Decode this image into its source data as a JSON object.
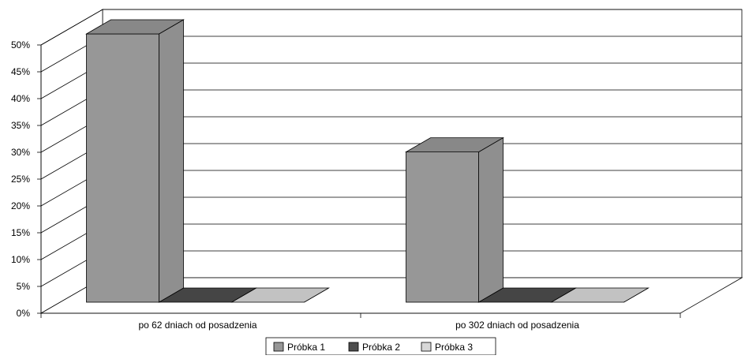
{
  "chart_data": {
    "type": "bar",
    "style": "3d-clustered-column",
    "categories": [
      "po 62 dniach od posadzenia",
      "po 302 dniach od posadzenia"
    ],
    "series": [
      {
        "name": "Próbka 1",
        "values": [
          50,
          28
        ],
        "color": "#979797"
      },
      {
        "name": "Próbka 2",
        "values": [
          0,
          0
        ],
        "color": "#4d4d4d"
      },
      {
        "name": "Próbka 3",
        "values": [
          0,
          0
        ],
        "color": "#d8d8d8"
      }
    ],
    "yticks": [
      "0%",
      "5%",
      "10%",
      "15%",
      "20%",
      "25%",
      "30%",
      "35%",
      "40%",
      "45%",
      "50%"
    ],
    "ylim": [
      0,
      50
    ],
    "grid": true,
    "legend_position": "bottom",
    "title": "",
    "xlabel": "",
    "ylabel": ""
  }
}
